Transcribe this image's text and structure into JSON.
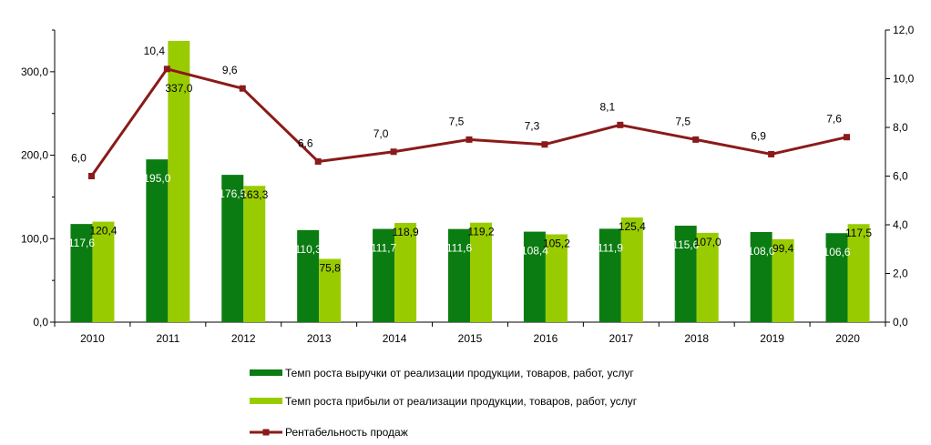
{
  "chart_data": {
    "type": "bar",
    "categories": [
      "2010",
      "2011",
      "2012",
      "2013",
      "2014",
      "2015",
      "2016",
      "2017",
      "2018",
      "2019",
      "2020"
    ],
    "series": [
      {
        "name": "Темп роста выручки от реализации продукции, товаров, работ, услуг",
        "kind": "bar",
        "axis": "left",
        "color": "#0b7c12",
        "values": [
          117.6,
          195.0,
          176.5,
          110.3,
          111.7,
          111.6,
          108.4,
          111.9,
          115.6,
          108.0,
          106.6
        ],
        "labels": [
          "117,6",
          "195,0",
          "176,5",
          "110,3",
          "111,7",
          "111,6",
          "108,4",
          "111,9",
          "115,6",
          "108,0",
          "106,6"
        ],
        "label_color": "#ffffff"
      },
      {
        "name": "Темп роста прибыли от реализации продукции, товаров, работ, услуг",
        "kind": "bar",
        "axis": "left",
        "color": "#99cc00",
        "values": [
          120.4,
          337.0,
          163.3,
          75.8,
          118.9,
          119.2,
          105.2,
          125.4,
          107.0,
          99.4,
          117.5
        ],
        "labels": [
          "120,4",
          "337,0",
          "163,3",
          "75,8",
          "118,9",
          "119,2",
          "105,2",
          "125,4",
          "107,0",
          "99,4",
          "117,5"
        ],
        "label_color": "#000000"
      },
      {
        "name": "Рентабельность продаж",
        "kind": "line",
        "axis": "right",
        "color": "#8b1a1a",
        "values": [
          6.0,
          10.4,
          9.6,
          6.6,
          7.0,
          7.5,
          7.3,
          8.1,
          7.5,
          6.9,
          7.6
        ],
        "labels": [
          "6,0",
          "10,4",
          "9,6",
          "6,6",
          "7,0",
          "7,5",
          "7,3",
          "8,1",
          "7,5",
          "6,9",
          "7,6"
        ],
        "label_color": "#000000"
      }
    ],
    "y_left": {
      "min": 0,
      "max": 350,
      "ticks": [
        0,
        100,
        200,
        300
      ],
      "tick_labels": [
        "0,0",
        "100,0",
        "200,0",
        "300,0"
      ]
    },
    "y_right": {
      "min": 0,
      "max": 12,
      "ticks": [
        0,
        2,
        4,
        6,
        8,
        10,
        12
      ],
      "tick_labels": [
        "0,0",
        "2,0",
        "4,0",
        "6,0",
        "8,0",
        "10,0",
        "12,0"
      ]
    },
    "grid": false,
    "legend_position": "bottom"
  }
}
